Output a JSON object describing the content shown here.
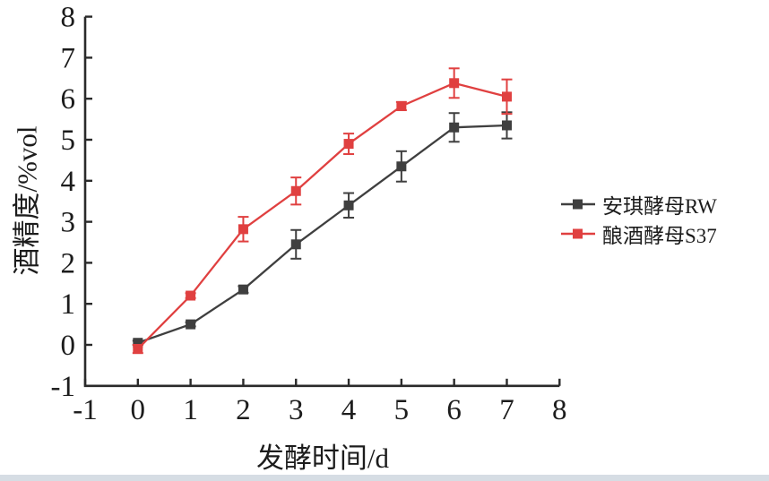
{
  "page": {
    "background": "#ffffff",
    "bottom_strip_color": "#d6dde4",
    "axis_color": "#2a2a2a",
    "text_color": "#1c1c1c"
  },
  "chart_data": {
    "type": "line",
    "title": "",
    "xlabel": "发酵时间/d",
    "ylabel": "酒精度/%vol",
    "x": [
      0,
      1,
      2,
      3,
      4,
      5,
      6,
      7
    ],
    "xlim": [
      -1,
      8
    ],
    "ylim": [
      -1,
      8
    ],
    "x_ticks": [
      -1,
      0,
      1,
      2,
      3,
      4,
      5,
      6,
      7,
      8
    ],
    "y_ticks": [
      -1,
      0,
      1,
      2,
      3,
      4,
      5,
      6,
      7,
      8
    ],
    "grid": false,
    "error_bars": true,
    "marker": "square",
    "legend_position": "right-center",
    "series": [
      {
        "name": "安琪酵母RW",
        "color": "#3f3f3f",
        "values": [
          0.05,
          0.5,
          1.35,
          2.45,
          3.4,
          4.35,
          5.3,
          5.35
        ],
        "errors": [
          0.05,
          0.05,
          0.08,
          0.35,
          0.3,
          0.37,
          0.35,
          0.32
        ]
      },
      {
        "name": "酿酒酵母S37",
        "color": "#e04040",
        "values": [
          -0.1,
          1.2,
          2.82,
          3.75,
          4.9,
          5.82,
          6.38,
          6.05
        ],
        "errors": [
          0.1,
          0.06,
          0.3,
          0.33,
          0.25,
          0.1,
          0.36,
          0.42
        ]
      }
    ]
  }
}
